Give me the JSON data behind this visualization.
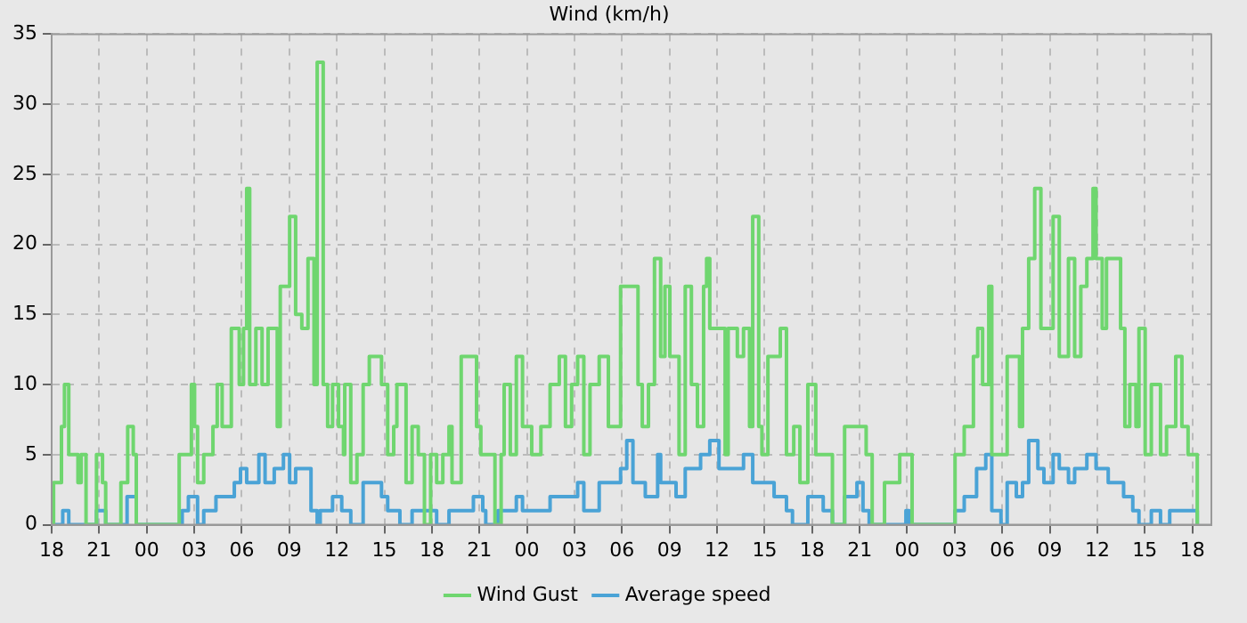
{
  "chart_data": {
    "type": "step",
    "title": "Wind (km/h)",
    "xlim": [
      18,
      91.2
    ],
    "ylim": [
      0,
      35
    ],
    "xticks": [
      18,
      21,
      {
        "value": 24,
        "label": "00"
      },
      {
        "value": 27,
        "label": "03"
      },
      {
        "value": 30,
        "label": "06"
      },
      {
        "value": 33,
        "label": "09"
      },
      {
        "value": 36,
        "label": "12"
      },
      {
        "value": 39,
        "label": "15"
      },
      {
        "value": 42,
        "label": "18"
      },
      {
        "value": 45,
        "label": "21"
      },
      {
        "value": 48,
        "label": "00"
      },
      {
        "value": 51,
        "label": "03"
      },
      {
        "value": 54,
        "label": "06"
      },
      {
        "value": 57,
        "label": "09"
      },
      {
        "value": 60,
        "label": "12"
      },
      {
        "value": 63,
        "label": "15"
      },
      {
        "value": 66,
        "label": "18"
      },
      {
        "value": 69,
        "label": "21"
      },
      {
        "value": 72,
        "label": "00"
      },
      {
        "value": 75,
        "label": "03"
      },
      {
        "value": 78,
        "label": "06"
      },
      {
        "value": 81,
        "label": "09"
      },
      {
        "value": 84,
        "label": "12"
      },
      {
        "value": 87,
        "label": "15"
      },
      {
        "value": 90,
        "label": "18"
      }
    ],
    "yticks": [
      0,
      5,
      10,
      15,
      20,
      25,
      30,
      35
    ],
    "grid": true,
    "legend": "bottom",
    "marker": "none",
    "line_style": "solid",
    "series": [
      {
        "name": "Wind Gust",
        "color": "#6fd66f",
        "x": [
          18,
          18.12,
          18.62,
          18.81,
          19.08,
          19.66,
          19.86,
          20.17,
          20.83,
          21.21,
          21.41,
          22.37,
          22.8,
          23.15,
          23.34,
          26.05,
          26.82,
          27.02,
          27.21,
          27.6,
          28.18,
          28.45,
          28.76,
          29.34,
          29.84,
          30.11,
          30.31,
          30.5,
          30.89,
          31.28,
          31.66,
          32.24,
          32.43,
          33.02,
          33.4,
          33.79,
          34.18,
          34.56,
          34.76,
          35.14,
          35.42,
          35.73,
          36.11,
          36.42,
          36.5,
          36.88,
          37.27,
          37.66,
          38.05,
          38.82,
          39.21,
          39.59,
          39.79,
          40.37,
          40.75,
          41.14,
          41.53,
          41.92,
          42.3,
          42.69,
          43.08,
          43.27,
          43.85,
          44.82,
          45.09,
          45.98,
          46.37,
          46.56,
          46.95,
          47.33,
          47.72,
          48.3,
          48.88,
          49.46,
          50.04,
          50.43,
          50.82,
          51.2,
          51.59,
          51.98,
          52.56,
          53.14,
          53.91,
          54.7,
          55.01,
          55.28,
          55.67,
          56.05,
          56.44,
          56.71,
          57.02,
          57.6,
          57.99,
          58.38,
          58.76,
          59.15,
          59.34,
          59.54,
          60.51,
          60.7,
          61.28,
          61.67,
          62.05,
          62.25,
          62.63,
          62.83,
          63.21,
          63.99,
          64.38,
          64.84,
          65.23,
          65.73,
          66.23,
          67.28,
          68.05,
          69.41,
          69.79,
          70.57,
          71.53,
          72.31,
          75.02,
          75.6,
          76.18,
          76.45,
          76.76,
          77.15,
          77.34,
          78.31,
          79.09,
          79.28,
          79.67,
          80.05,
          80.44,
          81.21,
          81.6,
          82.18,
          82.57,
          82.96,
          83.34,
          83.73,
          83.92,
          84.31,
          84.58,
          85.47,
          85.74,
          86.05,
          86.44,
          86.63,
          87.02,
          87.41,
          87.99,
          88.37,
          88.95,
          89.34,
          89.73,
          90.31
        ],
        "values": [
          0,
          3,
          7,
          10,
          5,
          3,
          5,
          0,
          5,
          3,
          0,
          3,
          7,
          5,
          0,
          5,
          10,
          7,
          3,
          5,
          7,
          10,
          7,
          14,
          10,
          14,
          24,
          10,
          14,
          10,
          14,
          7,
          17,
          22,
          15,
          14,
          19,
          10,
          33,
          10,
          7,
          10,
          7,
          5,
          10,
          3,
          5,
          10,
          12,
          10,
          5,
          7,
          10,
          3,
          7,
          5,
          0,
          5,
          3,
          5,
          7,
          3,
          12,
          7,
          5,
          0,
          5,
          10,
          5,
          12,
          7,
          5,
          7,
          10,
          12,
          7,
          10,
          12,
          5,
          10,
          12,
          7,
          17,
          17,
          10,
          7,
          10,
          19,
          12,
          17,
          12,
          5,
          17,
          10,
          7,
          17,
          19,
          14,
          5,
          14,
          12,
          14,
          7,
          22,
          7,
          5,
          12,
          14,
          5,
          7,
          3,
          10,
          5,
          0,
          7,
          5,
          0,
          3,
          5,
          0,
          5,
          7,
          12,
          14,
          10,
          17,
          5,
          12,
          7,
          14,
          19,
          24,
          14,
          22,
          12,
          19,
          12,
          17,
          19,
          24,
          19,
          14,
          19,
          14,
          7,
          10,
          7,
          14,
          5,
          10,
          5,
          7,
          12,
          7,
          5,
          0
        ]
      },
      {
        "name": "Average speed",
        "color": "#4aa3d6",
        "x": [
          18,
          18.7,
          19.08,
          20.83,
          21.41,
          22.76,
          23.34,
          26.24,
          26.63,
          27.21,
          27.6,
          28.37,
          29.53,
          29.92,
          30.31,
          31.08,
          31.47,
          32.05,
          32.63,
          33.02,
          33.4,
          34.37,
          34.76,
          34.95,
          35.73,
          36.31,
          36.88,
          37.66,
          38.82,
          39.21,
          39.98,
          40.75,
          42.3,
          43.08,
          44.62,
          45.21,
          45.4,
          46.17,
          47.33,
          47.72,
          49.46,
          51.2,
          51.59,
          52.56,
          53.91,
          54.3,
          54.69,
          55.47,
          56.25,
          56.44,
          57.41,
          57.99,
          58.96,
          59.54,
          60.12,
          61.67,
          62.25,
          63.6,
          64.38,
          64.76,
          65.73,
          66.7,
          67.28,
          68.05,
          68.83,
          69.21,
          69.6,
          71.92,
          72.12,
          75.02,
          75.6,
          76.38,
          76.96,
          77.34,
          77.92,
          78.31,
          78.89,
          79.28,
          79.67,
          80.25,
          80.63,
          81.21,
          81.6,
          82.18,
          82.57,
          83.34,
          83.92,
          84.69,
          85.66,
          86.24,
          86.63,
          87.41,
          87.99,
          88.57,
          90.31
        ],
        "values": [
          0,
          1,
          0,
          1,
          0,
          2,
          0,
          1,
          2,
          0,
          1,
          2,
          3,
          4,
          3,
          5,
          3,
          4,
          5,
          3,
          4,
          1,
          0,
          1,
          2,
          1,
          0,
          3,
          2,
          1,
          0,
          1,
          0,
          1,
          2,
          1,
          0,
          1,
          2,
          1,
          2,
          3,
          1,
          3,
          4,
          6,
          3,
          2,
          5,
          3,
          2,
          4,
          5,
          6,
          4,
          5,
          3,
          2,
          1,
          0,
          2,
          1,
          0,
          2,
          3,
          1,
          0,
          1,
          0,
          1,
          2,
          4,
          5,
          1,
          0,
          3,
          2,
          3,
          6,
          4,
          3,
          5,
          4,
          3,
          4,
          5,
          4,
          3,
          2,
          1,
          0,
          1,
          0,
          1,
          0
        ]
      }
    ]
  }
}
